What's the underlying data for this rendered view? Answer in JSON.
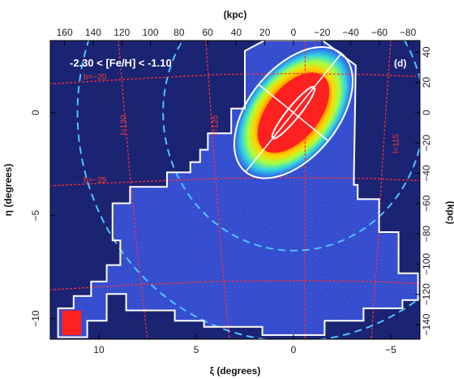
{
  "chart_data": {
    "type": "heatmap",
    "panel_title": "-2.30 < [Fe/H] < -1.10",
    "panel_tag": "(d)",
    "xlabel": "ξ (degrees)",
    "ylabel": "η (degrees)",
    "top_xlabel": "(kpc)",
    "right_ylabel": "(kpc)",
    "xlim": [
      12.5,
      -6.5
    ],
    "ylim": [
      -11.0,
      3.5
    ],
    "x_ticks": [
      10,
      5,
      0,
      -5
    ],
    "y_ticks": [
      0,
      -5,
      -10
    ],
    "x_tick_labels": [
      "10",
      "5",
      "0",
      "−5"
    ],
    "y_tick_labels": [
      "0",
      "−5",
      "−10"
    ],
    "top_ticks_kpc": [
      160,
      140,
      120,
      100,
      80,
      60,
      40,
      20,
      0,
      -20,
      -40,
      -60,
      -80
    ],
    "top_tick_labels": [
      "160",
      "140",
      "120",
      "100",
      "80",
      "60",
      "40",
      "20",
      "0",
      "−20",
      "−40",
      "−60",
      "−80"
    ],
    "kpc_per_degree": 13.6,
    "right_ticks_kpc": [
      40,
      20,
      0,
      -20,
      -40,
      -60,
      -80,
      -100,
      -120,
      -140
    ],
    "right_tick_labels": [
      "40",
      "20",
      "0",
      "−20",
      "−40",
      "−60",
      "−80",
      "−100",
      "−120",
      "−140"
    ],
    "grid_labels": [
      {
        "text": "b=−20",
        "x": 10.2,
        "y": 1.6
      },
      {
        "text": "b=−25",
        "x": 10.2,
        "y": -3.4
      },
      {
        "text": "l=130",
        "x": 8.6,
        "y": -0.6
      },
      {
        "text": "l=125",
        "x": 3.9,
        "y": -0.6
      },
      {
        "text": "l=115",
        "x": -5.4,
        "y": -1.5
      }
    ],
    "grid_lines": [
      {
        "name": "b=-20",
        "points": [
          [
            12.5,
            1.4
          ],
          [
            8,
            1.65
          ],
          [
            4,
            1.85
          ],
          [
            0,
            1.9
          ],
          [
            -4,
            1.85
          ],
          [
            -6.5,
            1.75
          ]
        ]
      },
      {
        "name": "b=-25",
        "points": [
          [
            12.5,
            -3.55
          ],
          [
            8,
            -3.35
          ],
          [
            4,
            -3.2
          ],
          [
            0,
            -3.15
          ],
          [
            -4,
            -3.2
          ],
          [
            -6.5,
            -3.3
          ]
        ]
      },
      {
        "name": "b=-30",
        "points": [
          [
            12.5,
            -8.6
          ],
          [
            8,
            -8.35
          ],
          [
            4,
            -8.2
          ],
          [
            0,
            -8.15
          ],
          [
            -4,
            -8.2
          ],
          [
            -6.5,
            -8.3
          ]
        ]
      },
      {
        "name": "l=130",
        "points": [
          [
            9.0,
            3.5
          ],
          [
            8.5,
            -2
          ],
          [
            8.0,
            -7
          ],
          [
            7.5,
            -11
          ]
        ]
      },
      {
        "name": "l=125",
        "points": [
          [
            4.5,
            3.5
          ],
          [
            4.1,
            -2
          ],
          [
            3.7,
            -7
          ],
          [
            3.3,
            -11
          ]
        ]
      },
      {
        "name": "l=120",
        "points": [
          [
            -0.6,
            3.5
          ],
          [
            -0.6,
            -2
          ],
          [
            -0.6,
            -7
          ],
          [
            -0.6,
            -11
          ]
        ]
      },
      {
        "name": "l=115",
        "points": [
          [
            -5.0,
            3.5
          ],
          [
            -4.6,
            -2
          ],
          [
            -4.3,
            -7
          ],
          [
            -4.0,
            -11
          ]
        ]
      }
    ],
    "dashed_circles": [
      {
        "center": [
          0,
          0
        ],
        "radius_deg": 11.1
      },
      {
        "center": [
          0,
          0
        ],
        "radius_deg": 6.7
      }
    ],
    "ellipses": [
      {
        "center": [
          0,
          0
        ],
        "semi_major_deg": 3.7,
        "semi_minor_deg": 2.3,
        "pa_deg": 39
      },
      {
        "center": [
          0,
          0
        ],
        "semi_major_deg": 1.6,
        "semi_minor_deg": 0.32,
        "pa_deg": 39
      }
    ],
    "footprint": [
      [
        2.5,
        3.0
      ],
      [
        1.5,
        3.5
      ],
      [
        -1.5,
        3.5
      ],
      [
        -3.2,
        2.3
      ],
      [
        -3.1,
        -3.5
      ],
      [
        -3.3,
        -3.5
      ],
      [
        -3.3,
        -4.2
      ],
      [
        -4.4,
        -4.2
      ],
      [
        -4.4,
        -5.8
      ],
      [
        -5.4,
        -5.8
      ],
      [
        -5.4,
        -7.8
      ],
      [
        -6.4,
        -7.8
      ],
      [
        -6.4,
        -9.1
      ],
      [
        -5.6,
        -9.1
      ],
      [
        -5.6,
        -9.5
      ],
      [
        -3.6,
        -9.5
      ],
      [
        -3.6,
        -10.1
      ],
      [
        -1.6,
        -10.1
      ],
      [
        -1.6,
        -10.8
      ],
      [
        1.6,
        -10.8
      ],
      [
        1.6,
        -10.4
      ],
      [
        4.6,
        -10.4
      ],
      [
        4.6,
        -10.1
      ],
      [
        6.1,
        -10.1
      ],
      [
        6.1,
        -9.6
      ],
      [
        8.6,
        -9.6
      ],
      [
        8.6,
        -8.8
      ],
      [
        9.6,
        -8.8
      ],
      [
        9.6,
        -10.1
      ],
      [
        10.6,
        -10.1
      ],
      [
        10.6,
        -10.9
      ],
      [
        12.1,
        -10.9
      ],
      [
        12.1,
        -9.5
      ],
      [
        11.3,
        -9.5
      ],
      [
        11.3,
        -8.9
      ],
      [
        10.4,
        -8.9
      ],
      [
        10.4,
        -8.2
      ],
      [
        9.6,
        -8.2
      ],
      [
        9.6,
        -7.4
      ],
      [
        8.9,
        -7.4
      ],
      [
        8.9,
        -6.2
      ],
      [
        9.3,
        -6.2
      ],
      [
        9.3,
        -4.4
      ],
      [
        8.4,
        -4.4
      ],
      [
        8.4,
        -3.6
      ],
      [
        6.5,
        -3.6
      ],
      [
        6.5,
        -2.9
      ],
      [
        5.3,
        -2.9
      ],
      [
        5.3,
        -2.4
      ],
      [
        4.8,
        -2.4
      ],
      [
        4.8,
        -1.8
      ],
      [
        4.4,
        -1.8
      ],
      [
        4.4,
        -1.0
      ],
      [
        3.2,
        -1.0
      ],
      [
        3.2,
        0.2
      ],
      [
        2.5,
        0.2
      ]
    ],
    "density_levels": [
      "#1a2a8c",
      "#2f4fd8",
      "#39a8ff",
      "#56e8d6",
      "#d6ff3c",
      "#ffd000",
      "#ff7a00",
      "#ff2020"
    ],
    "background_color": "#1b2373",
    "line_color": "#ffffff",
    "dashed_color": "#4fc3ff",
    "grid_color": "#ff3030"
  }
}
